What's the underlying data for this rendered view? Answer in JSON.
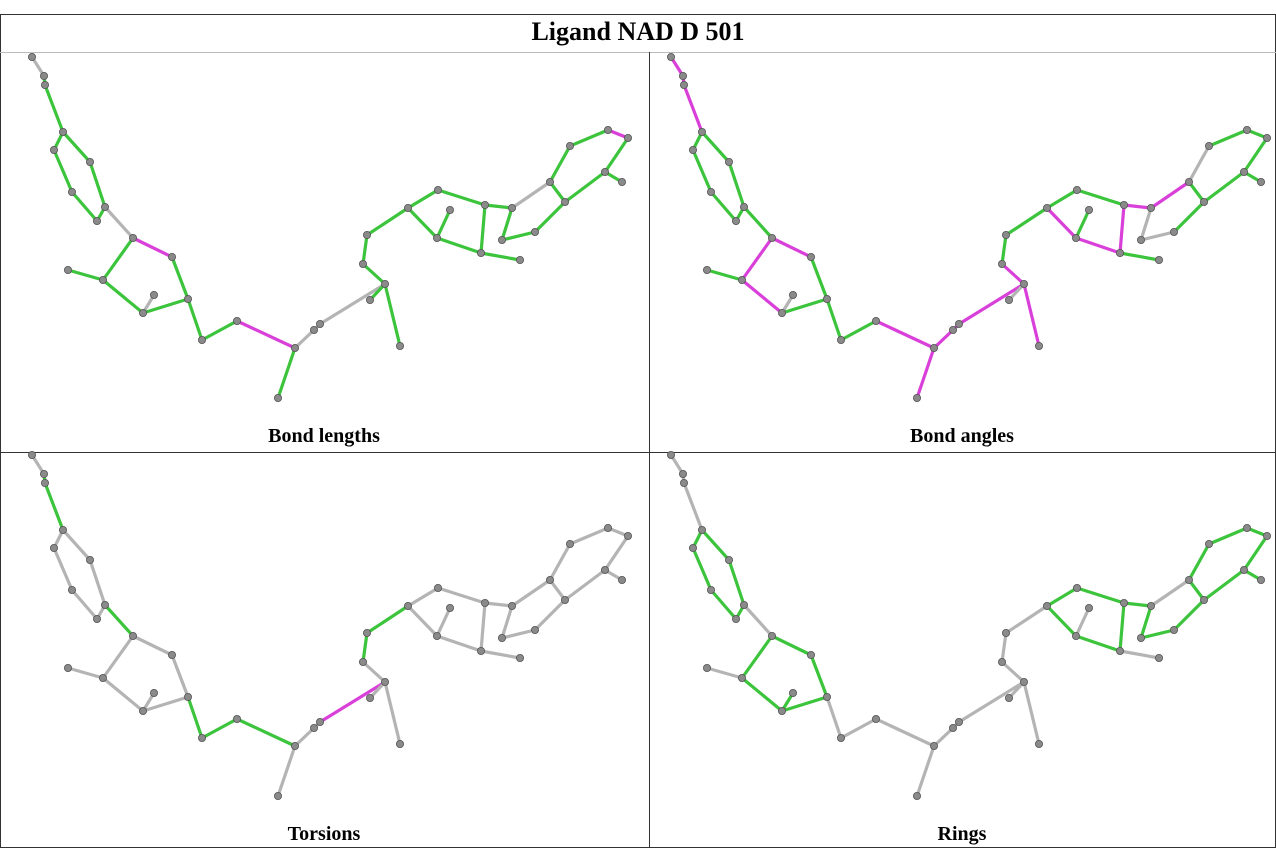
{
  "title": "Ligand NAD D 501",
  "panels": [
    {
      "caption": "Bond lengths"
    },
    {
      "caption": "Bond angles"
    },
    {
      "caption": "Torsions"
    },
    {
      "caption": "Rings"
    }
  ]
}
